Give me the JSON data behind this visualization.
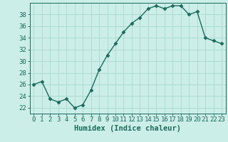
{
  "title": "",
  "xlabel": "Humidex (Indice chaleur)",
  "ylabel": "",
  "x": [
    0,
    1,
    2,
    3,
    4,
    5,
    6,
    7,
    8,
    9,
    10,
    11,
    12,
    13,
    14,
    15,
    16,
    17,
    18,
    19,
    20,
    21,
    22,
    23
  ],
  "y": [
    26,
    26.5,
    23.5,
    23,
    23.5,
    22,
    22.5,
    25,
    28.5,
    31,
    33,
    35,
    36.5,
    37.5,
    39,
    39.5,
    39,
    39.5,
    39.5,
    38,
    38.5,
    34,
    33.5,
    33
  ],
  "line_color": "#1a6b5a",
  "bg_color": "#cceee8",
  "grid_color": "#aad8d0",
  "tick_color": "#1a6b5a",
  "label_color": "#1a6b5a",
  "ylim": [
    21,
    40
  ],
  "yticks": [
    22,
    24,
    26,
    28,
    30,
    32,
    34,
    36,
    38
  ],
  "xticks": [
    0,
    1,
    2,
    3,
    4,
    5,
    6,
    7,
    8,
    9,
    10,
    11,
    12,
    13,
    14,
    15,
    16,
    17,
    18,
    19,
    20,
    21,
    22,
    23
  ],
  "marker": "D",
  "marker_size": 2.5,
  "line_width": 1.0,
  "tick_fontsize": 6.5,
  "xlabel_fontsize": 7.5
}
